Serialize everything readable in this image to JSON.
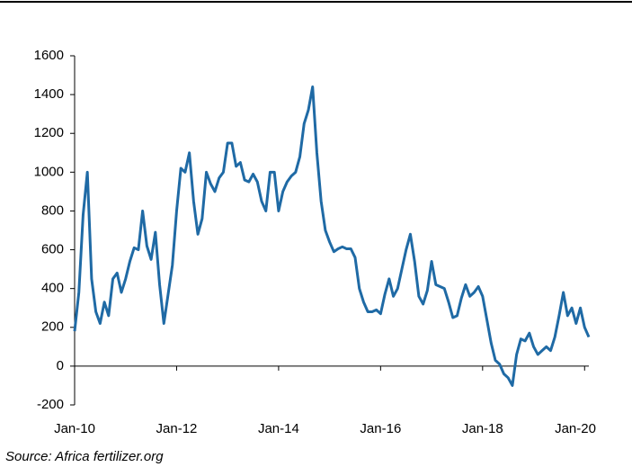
{
  "chart_data": {
    "type": "line",
    "source": "Source: Africa fertilizer.org",
    "x": [
      "2010-01",
      "2010-02",
      "2010-03",
      "2010-04",
      "2010-05",
      "2010-06",
      "2010-07",
      "2010-08",
      "2010-09",
      "2010-10",
      "2010-11",
      "2010-12",
      "2011-01",
      "2011-02",
      "2011-03",
      "2011-04",
      "2011-05",
      "2011-06",
      "2011-07",
      "2011-08",
      "2011-09",
      "2011-10",
      "2011-11",
      "2011-12",
      "2012-01",
      "2012-02",
      "2012-03",
      "2012-04",
      "2012-05",
      "2012-06",
      "2012-07",
      "2012-08",
      "2012-09",
      "2012-10",
      "2012-11",
      "2012-12",
      "2013-01",
      "2013-02",
      "2013-03",
      "2013-04",
      "2013-05",
      "2013-06",
      "2013-07",
      "2013-08",
      "2013-09",
      "2013-10",
      "2013-11",
      "2013-12",
      "2014-01",
      "2014-02",
      "2014-03",
      "2014-04",
      "2014-05",
      "2014-06",
      "2014-07",
      "2014-08",
      "2014-09",
      "2014-10",
      "2014-11",
      "2014-12",
      "2015-01",
      "2015-02",
      "2015-03",
      "2015-04",
      "2015-05",
      "2015-06",
      "2015-07",
      "2015-08",
      "2015-09",
      "2015-10",
      "2015-11",
      "2015-12",
      "2016-01",
      "2016-02",
      "2016-03",
      "2016-04",
      "2016-05",
      "2016-06",
      "2016-07",
      "2016-08",
      "2016-09",
      "2016-10",
      "2016-11",
      "2016-12",
      "2017-01",
      "2017-02",
      "2017-03",
      "2017-04",
      "2017-05",
      "2017-06",
      "2017-07",
      "2017-08",
      "2017-09",
      "2017-10",
      "2017-11",
      "2017-12",
      "2018-01",
      "2018-02",
      "2018-03",
      "2018-04",
      "2018-05",
      "2018-06",
      "2018-07",
      "2018-08",
      "2018-09",
      "2018-10",
      "2018-11",
      "2018-12",
      "2019-01",
      "2019-02",
      "2019-03",
      "2019-04",
      "2019-05",
      "2019-06",
      "2019-07",
      "2019-08",
      "2019-09",
      "2019-10",
      "2019-11",
      "2019-12",
      "2020-01",
      "2020-02"
    ],
    "series": [
      {
        "color": "#1f6aa5",
        "values": [
          180,
          380,
          780,
          1000,
          450,
          280,
          220,
          330,
          260,
          450,
          480,
          380,
          450,
          540,
          610,
          600,
          800,
          620,
          550,
          690,
          420,
          220,
          370,
          520,
          800,
          1020,
          1000,
          1100,
          850,
          680,
          760,
          1000,
          940,
          900,
          970,
          1000,
          1150,
          1150,
          1030,
          1050,
          960,
          950,
          990,
          950,
          850,
          800,
          1000,
          1000,
          800,
          900,
          950,
          980,
          1000,
          1080,
          1250,
          1320,
          1440,
          1100,
          850,
          700,
          640,
          590,
          605,
          615,
          605,
          605,
          560,
          400,
          330,
          280,
          280,
          290,
          270,
          370,
          450,
          360,
          400,
          500,
          600,
          680,
          540,
          360,
          320,
          390,
          540,
          420,
          410,
          400,
          330,
          250,
          260,
          350,
          420,
          360,
          380,
          410,
          360,
          240,
          120,
          30,
          10,
          -40,
          -60,
          -100,
          60,
          140,
          130,
          170,
          100,
          60,
          80,
          100,
          80,
          150,
          260,
          380,
          260,
          300,
          220,
          300,
          200,
          150
        ]
      }
    ],
    "xlim": [
      "2010-01",
      "2020-02"
    ],
    "xticks": [
      {
        "value": "2010-01",
        "label": "Jan-10"
      },
      {
        "value": "2012-01",
        "label": "Jan-12"
      },
      {
        "value": "2014-01",
        "label": "Jan-14"
      },
      {
        "value": "2016-01",
        "label": "Jan-16"
      },
      {
        "value": "2018-01",
        "label": "Jan-18"
      },
      {
        "value": "2020-01",
        "label": "Jan-20"
      }
    ],
    "ylim": [
      -200,
      1600
    ],
    "yticks": [
      -200,
      0,
      200,
      400,
      600,
      800,
      1000,
      1200,
      1400,
      1600
    ]
  }
}
